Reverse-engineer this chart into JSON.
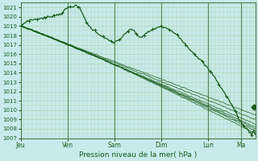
{
  "xlabel": "Pression niveau de la mer( hPa )",
  "ylim": [
    1007,
    1021.5
  ],
  "yticks": [
    1007,
    1008,
    1009,
    1010,
    1011,
    1012,
    1013,
    1014,
    1015,
    1016,
    1017,
    1018,
    1019,
    1020,
    1021
  ],
  "xtick_labels": [
    "Jeu",
    "Ven",
    "Sam",
    "Dim",
    "Lun",
    "Ma"
  ],
  "xtick_pos": [
    0,
    1.0,
    2.0,
    3.0,
    4.0,
    4.7
  ],
  "xlim": [
    0,
    5.0
  ],
  "day_lines": [
    1.0,
    2.0,
    3.0,
    4.0,
    4.7
  ],
  "bg_color": "#c8eaea",
  "grid_color": "#b0d4b0",
  "line_color": "#1a5c1a",
  "font_color": "#1a5c1a"
}
